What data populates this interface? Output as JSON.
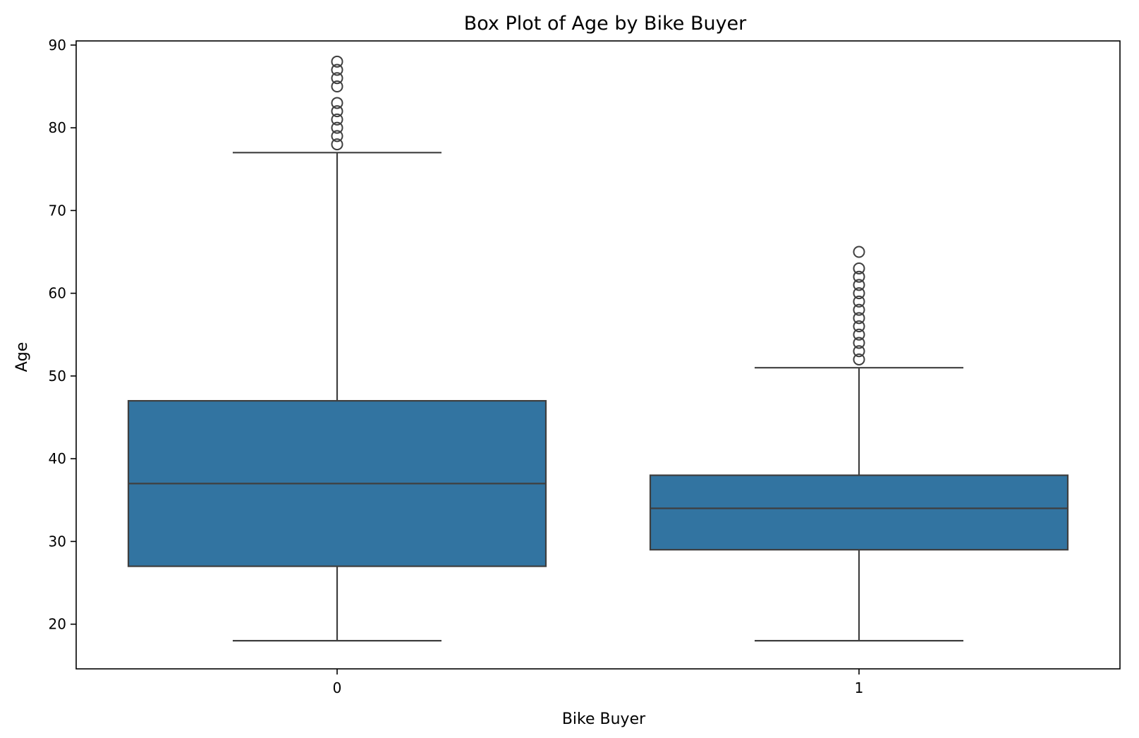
{
  "chart_data": {
    "type": "box",
    "title": "Box Plot of Age by Bike Buyer",
    "xlabel": "Bike Buyer",
    "ylabel": "Age",
    "categories": [
      "0",
      "1"
    ],
    "ylim": [
      14.6,
      90.5
    ],
    "yticks": [
      "20",
      "30",
      "40",
      "50",
      "60",
      "70",
      "80",
      "90"
    ],
    "grid": false,
    "colors": {
      "box_fill": "#3274a1",
      "line": "#3f3f3f",
      "axes": "#000000"
    },
    "boxes": [
      {
        "category": "0",
        "whisker_low": 18,
        "q1": 27,
        "median": 37,
        "q3": 47,
        "whisker_high": 77,
        "outliers": [
          78,
          79,
          80,
          81,
          82,
          83,
          85,
          86,
          87,
          88
        ]
      },
      {
        "category": "1",
        "whisker_low": 18,
        "q1": 29,
        "median": 34,
        "q3": 38,
        "whisker_high": 51,
        "outliers": [
          52,
          53,
          54,
          55,
          56,
          57,
          58,
          59,
          60,
          61,
          62,
          63,
          65
        ]
      }
    ]
  }
}
